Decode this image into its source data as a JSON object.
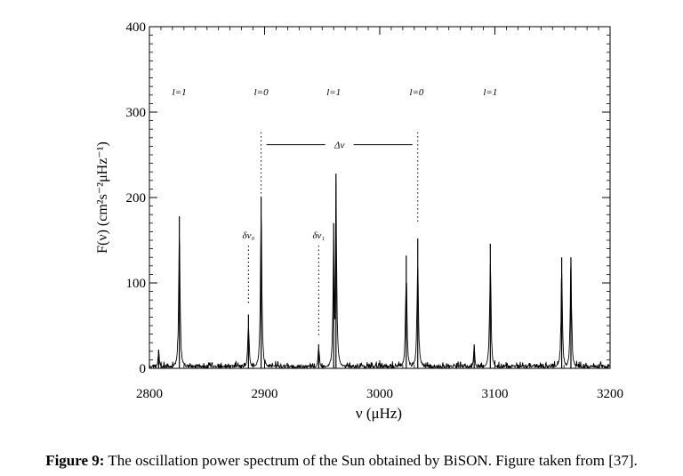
{
  "caption": {
    "label": "Figure 9:",
    "text": "The oscillation power spectrum of the Sun obtained by BiSON. Figure taken from [37]."
  },
  "chart_data": {
    "type": "line",
    "xlabel": "ν (μHz)",
    "ylabel": "F(ν) (cm²s⁻²μHz⁻¹)",
    "xlim": [
      2800,
      3200
    ],
    "ylim": [
      0,
      400
    ],
    "xticks": [
      2800,
      2900,
      3000,
      3100,
      3200
    ],
    "yticks": [
      0,
      100,
      200,
      300,
      400
    ],
    "peaks": [
      {
        "x": 2808,
        "y": 22
      },
      {
        "x": 2826,
        "y": 178
      },
      {
        "x": 2886,
        "y": 63
      },
      {
        "x": 2897,
        "y": 200
      },
      {
        "x": 2947,
        "y": 28
      },
      {
        "x": 2960,
        "y": 170
      },
      {
        "x": 2962,
        "y": 228
      },
      {
        "x": 3023,
        "y": 132
      },
      {
        "x": 3033,
        "y": 152
      },
      {
        "x": 3082,
        "y": 28
      },
      {
        "x": 3096,
        "y": 146
      },
      {
        "x": 3158,
        "y": 130
      },
      {
        "x": 3166,
        "y": 130
      }
    ],
    "mode_labels": [
      {
        "text": "l=1",
        "x": 2826
      },
      {
        "text": "l=0",
        "x": 2897
      },
      {
        "text": "l=1",
        "x": 2960
      },
      {
        "text": "l=0",
        "x": 3032
      },
      {
        "text": "l=1",
        "x": 3096
      }
    ],
    "annotations": {
      "large_separation": {
        "text": "Δν",
        "x1": 2897,
        "x2": 3033,
        "y": 290
      },
      "small_separation_0": {
        "text": "δν₀",
        "x": 2886
      },
      "small_separation_1": {
        "text": "δν₁",
        "x": 2947
      }
    }
  },
  "colors": {
    "line": "#000000",
    "background": "#ffffff"
  }
}
